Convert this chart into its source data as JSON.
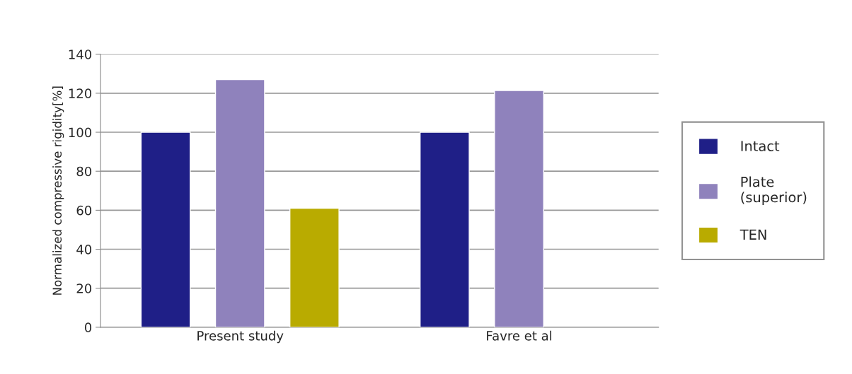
{
  "chart_data": {
    "type": "bar",
    "ylabel": "Normalized compressive rigidity[%]",
    "categories": [
      "Present study",
      "Favre et al"
    ],
    "series": [
      {
        "name": "Intact",
        "color": "#1f1f87",
        "values": [
          100,
          100
        ]
      },
      {
        "name": "Plate\n(superior)",
        "color": "#8f82bc",
        "values": [
          127,
          121.4
        ]
      },
      {
        "name": "TEN",
        "color": "#b9ab00",
        "values": [
          61,
          null
        ]
      }
    ],
    "ylim": [
      0,
      140
    ],
    "yticks": [
      0,
      20,
      40,
      60,
      80,
      100,
      120,
      140
    ],
    "grid": "y",
    "legend": "right"
  }
}
